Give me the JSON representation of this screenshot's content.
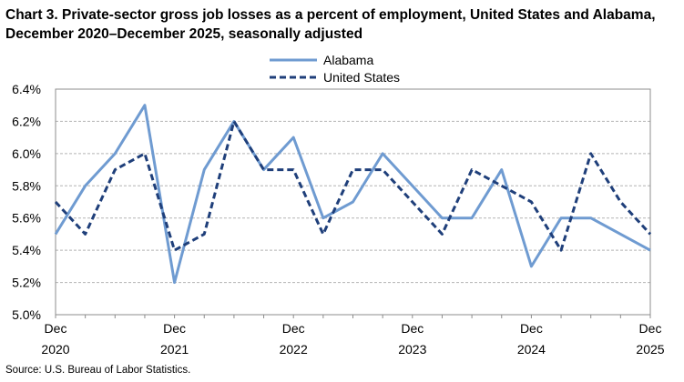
{
  "chart_data": {
    "type": "line",
    "title": "Chart 3. Private-sector gross job losses as a percent of employment, United States and Alabama, December 2020–December 2025, seasonally adjusted",
    "source": "Source: U.S. Bureau of Labor Statistics.",
    "x": [
      "Dec 2020",
      "Mar 2021",
      "Jun 2021",
      "Sep 2021",
      "Dec 2021",
      "Mar 2022",
      "Jun 2022",
      "Sep 2022",
      "Dec 2022",
      "Mar 2023",
      "Jun 2023",
      "Sep 2023",
      "Dec 2023",
      "Mar 2024",
      "Jun 2024",
      "Sep 2024",
      "Dec 2024",
      "Mar 2025",
      "Jun 2025",
      "Sep 2025",
      "Dec 2025"
    ],
    "x_ticks": [
      {
        "index": 0,
        "month": "Dec",
        "year": "2020"
      },
      {
        "index": 4,
        "month": "Dec",
        "year": "2021"
      },
      {
        "index": 8,
        "month": "Dec",
        "year": "2022"
      },
      {
        "index": 12,
        "month": "Dec",
        "year": "2023"
      },
      {
        "index": 16,
        "month": "Dec",
        "year": "2024"
      },
      {
        "index": 20,
        "month": "Dec",
        "year": "2025"
      }
    ],
    "y_ticks": [
      "5.0%",
      "5.2%",
      "5.4%",
      "5.6%",
      "5.8%",
      "6.0%",
      "6.2%",
      "6.4%"
    ],
    "ylim": [
      5.0,
      6.4
    ],
    "grid": true,
    "legend_position": "top-center",
    "series": [
      {
        "name": "Alabama",
        "color": "#6f9bd1",
        "style": "solid",
        "values": [
          5.5,
          5.8,
          6.0,
          6.3,
          5.2,
          5.9,
          6.2,
          5.9,
          6.1,
          5.6,
          5.7,
          6.0,
          5.8,
          5.6,
          5.6,
          5.9,
          5.3,
          5.6,
          5.6,
          5.5,
          5.4
        ]
      },
      {
        "name": "United States",
        "color": "#1f3f7a",
        "style": "dashed",
        "values": [
          5.7,
          5.5,
          5.9,
          6.0,
          5.4,
          5.5,
          6.2,
          5.9,
          5.9,
          5.5,
          5.9,
          5.9,
          5.7,
          5.5,
          5.9,
          5.8,
          5.7,
          5.4,
          6.0,
          5.7,
          5.5
        ]
      }
    ]
  }
}
